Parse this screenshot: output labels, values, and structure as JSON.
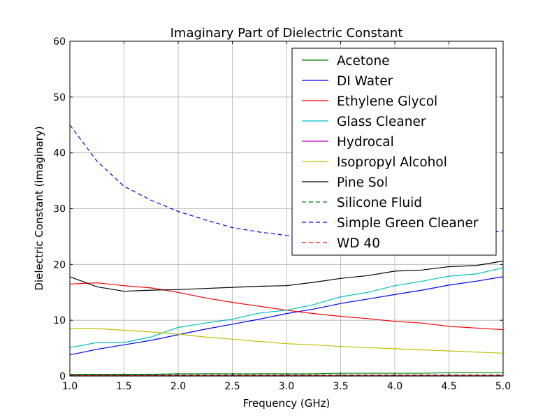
{
  "chart_data": {
    "type": "line",
    "title": "Imaginary Part of Dielectric Constant",
    "xlabel": "Frequency (GHz)",
    "ylabel": "Dielectric Constant (imaginary)",
    "xlim": [
      1.0,
      5.0
    ],
    "ylim": [
      0,
      60
    ],
    "xticks": [
      "1.0",
      "1.5",
      "2.0",
      "2.5",
      "3.0",
      "3.5",
      "4.0",
      "4.5",
      "5.0"
    ],
    "yticks": [
      "0",
      "10",
      "20",
      "30",
      "40",
      "50",
      "60"
    ],
    "grid": true,
    "legend_position": "top-right",
    "x": [
      1.0,
      1.25,
      1.5,
      1.75,
      2.0,
      2.25,
      2.5,
      2.75,
      3.0,
      3.25,
      3.5,
      3.75,
      4.0,
      4.25,
      4.5,
      4.75,
      5.0
    ],
    "series": [
      {
        "name": "Acetone",
        "color": "#008000",
        "dash": "solid",
        "values": [
          0.3,
          0.3,
          0.3,
          0.3,
          0.4,
          0.4,
          0.4,
          0.4,
          0.4,
          0.4,
          0.5,
          0.5,
          0.5,
          0.5,
          0.6,
          0.6,
          0.6
        ]
      },
      {
        "name": "DI Water",
        "color": "#0000ff",
        "dash": "solid",
        "values": [
          3.8,
          4.8,
          5.6,
          6.4,
          7.4,
          8.4,
          9.3,
          10.2,
          11.2,
          12.0,
          13.0,
          13.8,
          14.6,
          15.4,
          16.3,
          17.0,
          17.8
        ]
      },
      {
        "name": "Ethylene Glycol",
        "color": "#ff0000",
        "dash": "solid",
        "values": [
          16.5,
          16.7,
          16.2,
          15.8,
          15.0,
          14.0,
          13.2,
          12.5,
          11.8,
          11.2,
          10.7,
          10.3,
          9.8,
          9.5,
          8.9,
          8.6,
          8.3
        ]
      },
      {
        "name": "Glass Cleaner",
        "color": "#00bfbf",
        "dash": "solid",
        "values": [
          5.1,
          6.0,
          6.0,
          7.0,
          8.7,
          9.5,
          10.2,
          11.3,
          11.8,
          12.8,
          14.2,
          15.0,
          16.2,
          17.0,
          17.9,
          18.3,
          19.4
        ]
      },
      {
        "name": "Hydrocal",
        "color": "#bf00bf",
        "dash": "solid",
        "values": [
          0.1,
          0.1,
          0.1,
          0.1,
          0.1,
          0.1,
          0.1,
          0.1,
          0.1,
          0.1,
          0.1,
          0.1,
          0.1,
          0.1,
          0.1,
          0.1,
          0.1
        ]
      },
      {
        "name": "Isopropyl Alcohol",
        "color": "#bfbf00",
        "dash": "solid",
        "values": [
          8.5,
          8.5,
          8.2,
          7.9,
          7.5,
          7.0,
          6.6,
          6.2,
          5.8,
          5.6,
          5.3,
          5.1,
          4.9,
          4.7,
          4.5,
          4.3,
          4.1
        ]
      },
      {
        "name": "Pine Sol",
        "color": "#000000",
        "dash": "solid",
        "values": [
          17.8,
          16.0,
          15.2,
          15.4,
          15.5,
          15.7,
          15.9,
          16.1,
          16.2,
          16.8,
          17.5,
          18.0,
          18.8,
          19.0,
          19.6,
          19.8,
          20.6
        ]
      },
      {
        "name": "Silicone Fluid",
        "color": "#008000",
        "dash": "dashed",
        "values": [
          0.2,
          0.2,
          0.2,
          0.2,
          0.2,
          0.2,
          0.2,
          0.2,
          0.2,
          0.2,
          0.2,
          0.2,
          0.2,
          0.2,
          0.2,
          0.2,
          0.2
        ]
      },
      {
        "name": "Simple Green Cleaner",
        "color": "#0000ff",
        "dash": "dashed",
        "values": [
          45.0,
          38.5,
          34.0,
          31.5,
          29.5,
          28.0,
          26.6,
          25.8,
          25.2,
          25.0,
          25.0,
          25.0,
          25.0,
          25.0,
          25.2,
          25.5,
          26.0
        ]
      },
      {
        "name": "WD 40",
        "color": "#ff0000",
        "dash": "dashed",
        "values": [
          0.1,
          0.1,
          0.1,
          0.1,
          0.1,
          0.1,
          0.1,
          0.1,
          0.1,
          0.1,
          0.1,
          0.1,
          0.1,
          0.1,
          0.1,
          0.1,
          0.1
        ]
      }
    ]
  }
}
